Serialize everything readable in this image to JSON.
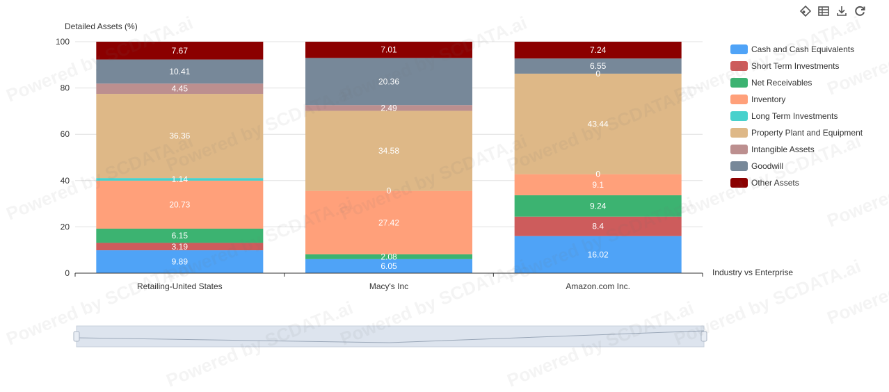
{
  "toolbox": {
    "icons": [
      "tag-icon",
      "data-view-icon",
      "download-icon",
      "refresh-icon"
    ]
  },
  "watermark": "Powered by SCDATA.ai",
  "chart_data": {
    "type": "bar",
    "stacked": true,
    "ylabel": "Detailed Assets (%)",
    "xlabel": "Industry vs Enterprise",
    "ylim": [
      0,
      100
    ],
    "yticks": [
      0,
      20,
      40,
      60,
      80,
      100
    ],
    "grid": true,
    "legend_position": "right",
    "categories": [
      "Retailing-United States",
      "Macy's Inc",
      "Amazon.com Inc."
    ],
    "series": [
      {
        "name": "Cash and Cash Equivalents",
        "color": "#4fa3f7",
        "values": [
          9.89,
          6.05,
          16.02
        ],
        "labels": [
          "9.89",
          "6.05",
          "16.02"
        ]
      },
      {
        "name": "Short Term Investments",
        "color": "#cd5c5c",
        "values": [
          3.19,
          0,
          8.4
        ],
        "labels": [
          "3.19",
          "",
          "8.4"
        ]
      },
      {
        "name": "Net Receivables",
        "color": "#3cb371",
        "values": [
          6.15,
          2.08,
          9.24
        ],
        "labels": [
          "6.15",
          "2.08",
          "9.24"
        ]
      },
      {
        "name": "Inventory",
        "color": "#ffa07a",
        "values": [
          20.73,
          27.42,
          9.1
        ],
        "labels": [
          "20.73",
          "27.42",
          "9.1"
        ]
      },
      {
        "name": "Long Term Investments",
        "color": "#48d1cc",
        "values": [
          1.14,
          0,
          0
        ],
        "labels": [
          "1.14",
          "0",
          "0"
        ]
      },
      {
        "name": "Property Plant and Equipment",
        "color": "#deb887",
        "values": [
          36.36,
          34.58,
          43.44
        ],
        "labels": [
          "36.36",
          "34.58",
          "43.44"
        ]
      },
      {
        "name": "Intangible Assets",
        "color": "#bc8f8f",
        "values": [
          4.45,
          2.49,
          0
        ],
        "labels": [
          "4.45",
          "2.49",
          "0"
        ]
      },
      {
        "name": "Goodwill",
        "color": "#778899",
        "values": [
          10.41,
          20.36,
          6.55
        ],
        "labels": [
          "10.41",
          "20.36",
          "6.55"
        ]
      },
      {
        "name": "Other Assets",
        "color": "#8b0000",
        "values": [
          7.67,
          7.01,
          7.24
        ],
        "labels": [
          "7.67",
          "7.01",
          "7.24"
        ]
      }
    ]
  }
}
